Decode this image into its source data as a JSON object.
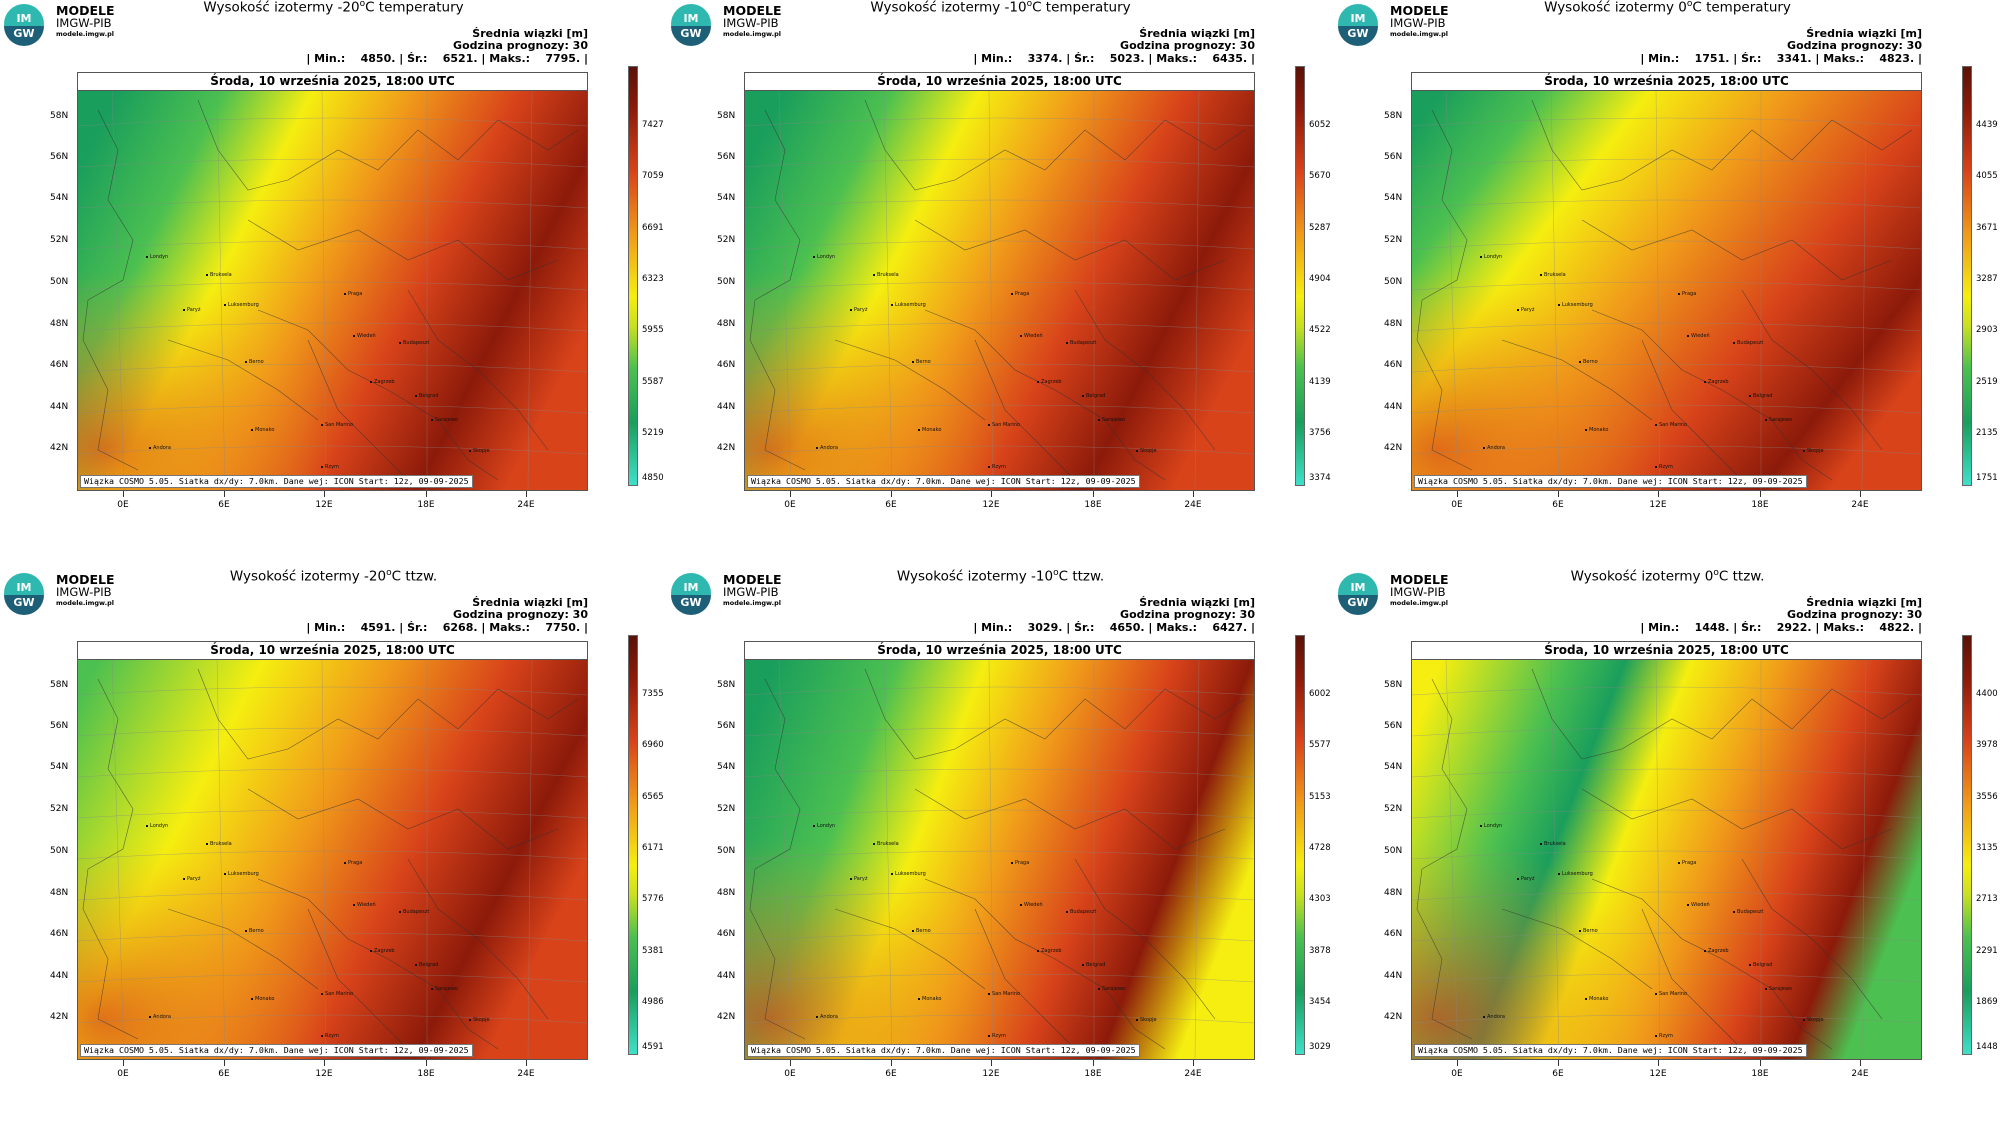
{
  "brand": {
    "line1": "MODELE",
    "line2": "IMGW-PIB",
    "line3": "modele.imgw.pl",
    "logo_top": "IM",
    "logo_bottom": "GW"
  },
  "common": {
    "date": "Środa, 10 września 2025, 18:00 UTC",
    "footer": "Wiązka COSMO 5.05. Siatka dx/dy: 7.0km. Dane wej: ICON Start: 12z, 09-09-2025",
    "stat_title": "Średnia wiązki [m]",
    "forecast_hour": "Godzina prognozy: 30",
    "lat_labels": [
      "58N",
      "56N",
      "54N",
      "52N",
      "50N",
      "48N",
      "46N",
      "44N",
      "42N"
    ],
    "lon_labels": [
      "0E",
      "6E",
      "12E",
      "18E",
      "24E"
    ],
    "cities": [
      "Londyn",
      "Bruksela",
      "Paryż",
      "Luksemburg",
      "Praga",
      "Wiedeń",
      "Budapeszt",
      "Berno",
      "Zagrzeb",
      "Belgrad",
      "San Marino",
      "Sarajewo",
      "Monako",
      "Andora",
      "Rzym",
      "Skopje"
    ]
  },
  "panels": [
    {
      "title_pre": "Wysokość izotermy -20",
      "title_post": "C temperatury",
      "stats": "| Min.:    4850. | Śr.:    6521. | Maks.:    7795. |",
      "cbar": [
        "7427",
        "7059",
        "6691",
        "6323",
        "5955",
        "5587",
        "5219",
        "4850"
      ],
      "pattern": "temp"
    },
    {
      "title_pre": "Wysokość izotermy -10",
      "title_post": "C temperatury",
      "stats": "| Min.:    3374. | Śr.:    5023. | Maks.:    6435. |",
      "cbar": [
        "6052",
        "5670",
        "5287",
        "4904",
        "4522",
        "4139",
        "3756",
        "3374"
      ],
      "pattern": "temp"
    },
    {
      "title_pre": "Wysokość izotermy 0",
      "title_post": "C temperatury",
      "stats": "| Min.:    1751. | Śr.:    3341. | Maks.:    4823. |",
      "cbar": [
        "4439",
        "4055",
        "3671",
        "3287",
        "2903",
        "2519",
        "2135",
        "1751"
      ],
      "pattern": "temp0"
    },
    {
      "title_pre": "Wysokość izotermy -20",
      "title_post": "C ttzw.",
      "stats": "| Min.:    4591. | Śr.:    6268. | Maks.:    7750. |",
      "cbar": [
        "7355",
        "6960",
        "6565",
        "6171",
        "5776",
        "5381",
        "4986",
        "4591"
      ],
      "pattern": "ttzw"
    },
    {
      "title_pre": "Wysokość izotermy -10",
      "title_post": "C ttzw.",
      "stats": "| Min.:    3029. | Śr.:    4650. | Maks.:    6427. |",
      "cbar": [
        "6002",
        "5577",
        "5153",
        "4728",
        "4303",
        "3878",
        "3454",
        "3029"
      ],
      "pattern": "ttzw10"
    },
    {
      "title_pre": "Wysokość izotermy 0",
      "title_post": "C ttzw.",
      "stats": "| Min.:    1448. | Śr.:    2922. | Maks.:    4822. |",
      "cbar": [
        "4400",
        "3978",
        "3556",
        "3135",
        "2713",
        "2291",
        "1869",
        "1448"
      ],
      "pattern": "ttzw0"
    }
  ],
  "colors": {
    "green_dark": "#1a9e5c",
    "green": "#4cc050",
    "yellow": "#f5ee10",
    "orange": "#f09a1a",
    "red": "#d8431a",
    "dark_red": "#8c1a0a",
    "cyan": "#3fe0c8"
  }
}
